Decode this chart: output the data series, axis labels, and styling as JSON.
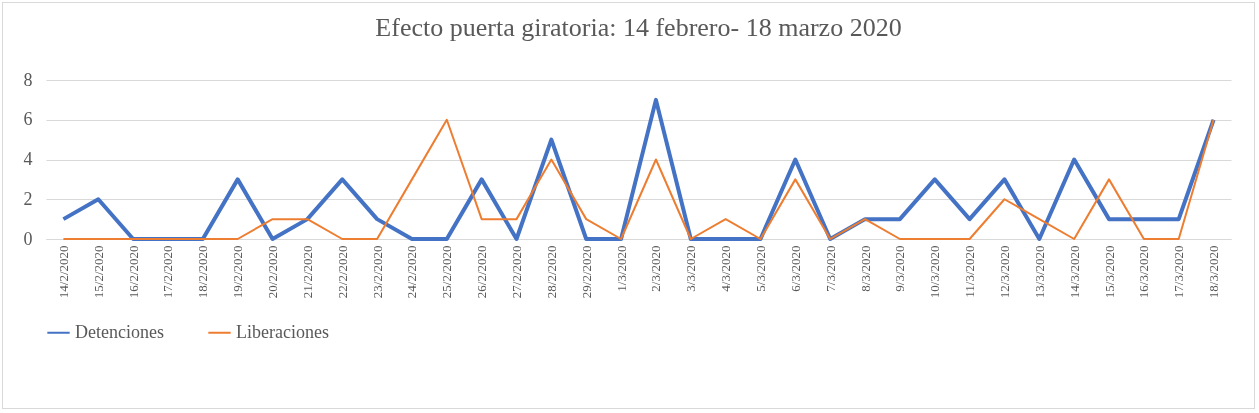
{
  "chart_data": {
    "type": "line",
    "title": "Efecto puerta giratoria: 14 febrero- 18 marzo 2020",
    "categories": [
      "14/2/2020",
      "15/2/2020",
      "16/2/2020",
      "17/2/2020",
      "18/2/2020",
      "19/2/2020",
      "20/2/2020",
      "21/2/2020",
      "22/2/2020",
      "23/2/2020",
      "24/2/2020",
      "25/2/2020",
      "26/2/2020",
      "27/2/2020",
      "28/2/2020",
      "29/2/2020",
      "1/3/2020",
      "2/3/2020",
      "3/3/2020",
      "4/3/2020",
      "5/3/2020",
      "6/3/2020",
      "7/3/2020",
      "8/3/2020",
      "9/3/2020",
      "10/3/2020",
      "11/3/2020",
      "12/3/2020",
      "13/3/2020",
      "14/3/2020",
      "15/3/2020",
      "16/3/2020",
      "17/3/2020",
      "18/3/2020"
    ],
    "series": [
      {
        "name": "Detenciones",
        "color": "#4472c4",
        "values": [
          1,
          2,
          0,
          0,
          0,
          3,
          0,
          1,
          3,
          1,
          0,
          0,
          3,
          0,
          5,
          0,
          0,
          7,
          0,
          0,
          0,
          4,
          0,
          1,
          1,
          3,
          1,
          3,
          0,
          4,
          1,
          1,
          1,
          6
        ]
      },
      {
        "name": "Liberaciones",
        "color": "#ed7d31",
        "values": [
          0,
          0,
          0,
          0,
          0,
          0,
          1,
          1,
          0,
          0,
          3,
          6,
          1,
          1,
          4,
          1,
          0,
          4,
          0,
          1,
          0,
          3,
          0,
          1,
          0,
          0,
          0,
          2,
          1,
          0,
          3,
          0,
          0,
          6
        ]
      }
    ],
    "ylim": [
      0,
      8
    ],
    "yticks": [
      0,
      2,
      4,
      6,
      8
    ],
    "grid": "y",
    "legend": "bottom"
  }
}
